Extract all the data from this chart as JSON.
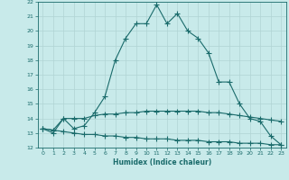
{
  "title": "",
  "xlabel": "Humidex (Indice chaleur)",
  "bg_color": "#c8eaea",
  "grid_bg_color": "#c8eaea",
  "line_color": "#1a6b6b",
  "grid_color": "#b0d4d4",
  "xlim": [
    -0.5,
    23.5
  ],
  "ylim": [
    12,
    22
  ],
  "yticks": [
    12,
    13,
    14,
    15,
    16,
    17,
    18,
    19,
    20,
    21,
    22
  ],
  "xticks": [
    0,
    1,
    2,
    3,
    4,
    5,
    6,
    7,
    8,
    9,
    10,
    11,
    12,
    13,
    14,
    15,
    16,
    17,
    18,
    19,
    20,
    21,
    22,
    23
  ],
  "line1_x": [
    0,
    1,
    2,
    3,
    4,
    5,
    6,
    7,
    8,
    9,
    10,
    11,
    12,
    13,
    14,
    15,
    16,
    17,
    18,
    19,
    20,
    21,
    22,
    23
  ],
  "line1_y": [
    13.3,
    13.0,
    14.0,
    13.3,
    13.5,
    14.4,
    15.5,
    18.0,
    19.5,
    20.5,
    20.5,
    21.8,
    20.5,
    21.2,
    20.0,
    19.5,
    18.5,
    16.5,
    16.5,
    15.0,
    14.0,
    13.8,
    12.8,
    12.2
  ],
  "line2_x": [
    0,
    1,
    2,
    3,
    4,
    5,
    6,
    7,
    8,
    9,
    10,
    11,
    12,
    13,
    14,
    15,
    16,
    17,
    18,
    19,
    20,
    21,
    22,
    23
  ],
  "line2_y": [
    13.3,
    13.2,
    14.0,
    14.0,
    14.0,
    14.2,
    14.3,
    14.3,
    14.4,
    14.4,
    14.5,
    14.5,
    14.5,
    14.5,
    14.5,
    14.5,
    14.4,
    14.4,
    14.3,
    14.2,
    14.1,
    14.0,
    13.9,
    13.8
  ],
  "line3_x": [
    0,
    1,
    2,
    3,
    4,
    5,
    6,
    7,
    8,
    9,
    10,
    11,
    12,
    13,
    14,
    15,
    16,
    17,
    18,
    19,
    20,
    21,
    22,
    23
  ],
  "line3_y": [
    13.3,
    13.2,
    13.1,
    13.0,
    12.9,
    12.9,
    12.8,
    12.8,
    12.7,
    12.7,
    12.6,
    12.6,
    12.6,
    12.5,
    12.5,
    12.5,
    12.4,
    12.4,
    12.4,
    12.3,
    12.3,
    12.3,
    12.2,
    12.2
  ]
}
